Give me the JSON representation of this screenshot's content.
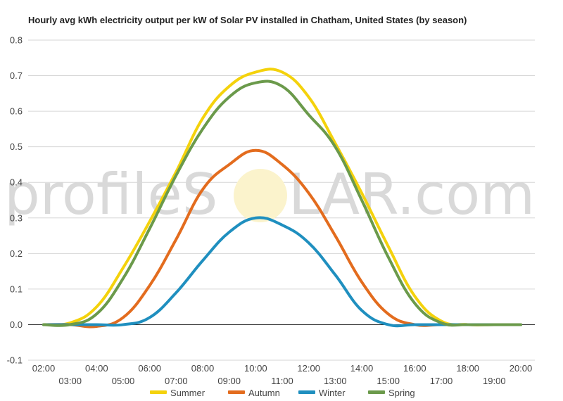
{
  "chart_data": {
    "type": "line",
    "title": "Hourly avg kWh electricity output per kW of Solar PV installed in Chatham, United States (by season)",
    "xlabel": "",
    "ylabel": "",
    "x": [
      "02:00",
      "03:00",
      "04:00",
      "05:00",
      "06:00",
      "07:00",
      "08:00",
      "09:00",
      "10:00",
      "11:00",
      "12:00",
      "13:00",
      "14:00",
      "15:00",
      "16:00",
      "17:00",
      "18:00",
      "19:00",
      "20:00"
    ],
    "ylim": [
      -0.1,
      0.8
    ],
    "yticks": [
      "0.8",
      "0.7",
      "0.6",
      "0.5",
      "0.4",
      "0.3",
      "0.2",
      "0.1",
      "0.0",
      "-0.1"
    ],
    "grid": true,
    "legend_position": "bottom",
    "series": [
      {
        "name": "Summer",
        "color": "#f4d20c",
        "values": [
          0.0,
          0.005,
          0.05,
          0.16,
          0.29,
          0.43,
          0.58,
          0.67,
          0.71,
          0.71,
          0.64,
          0.51,
          0.37,
          0.22,
          0.08,
          0.01,
          0.0,
          0.0,
          0.0
        ]
      },
      {
        "name": "Autumn",
        "color": "#e36c1e",
        "values": [
          0.0,
          0.0,
          -0.005,
          0.02,
          0.11,
          0.24,
          0.38,
          0.45,
          0.49,
          0.45,
          0.37,
          0.25,
          0.12,
          0.03,
          0.0,
          0.0,
          0.0,
          0.0,
          0.0
        ]
      },
      {
        "name": "Winter",
        "color": "#1f8fbf",
        "values": [
          0.0,
          0.0,
          0.0,
          0.0,
          0.02,
          0.09,
          0.18,
          0.26,
          0.3,
          0.28,
          0.23,
          0.14,
          0.04,
          0.0,
          0.0,
          0.0,
          0.0,
          0.0,
          0.0
        ]
      },
      {
        "name": "Spring",
        "color": "#6b9a4b",
        "values": [
          0.0,
          0.0,
          0.03,
          0.13,
          0.27,
          0.42,
          0.55,
          0.64,
          0.68,
          0.67,
          0.59,
          0.5,
          0.35,
          0.19,
          0.06,
          0.005,
          0.0,
          0.0,
          0.0
        ]
      }
    ]
  },
  "watermark": {
    "left": "profileS",
    "right": "LAR.com"
  }
}
